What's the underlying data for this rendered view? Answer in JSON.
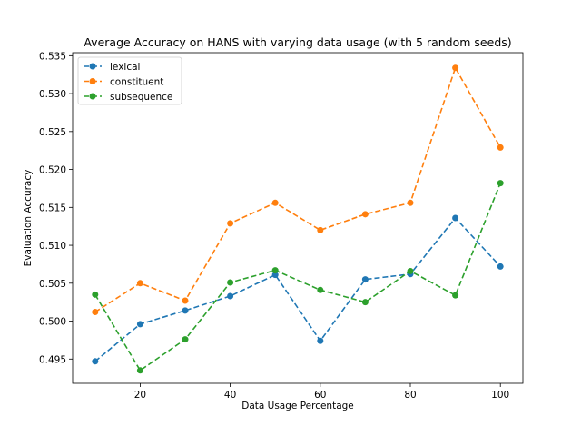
{
  "chart_data": {
    "type": "line",
    "title": "Average Accuracy on HANS with varying data usage (with 5 random seeds)",
    "xlabel": "Data Usage Percentage",
    "ylabel": "Evaluation Accuracy",
    "x": [
      10,
      20,
      30,
      40,
      50,
      60,
      70,
      80,
      90,
      100
    ],
    "xlim": [
      5,
      105
    ],
    "ylim": [
      0.4918,
      0.5354
    ],
    "xticks": [
      20,
      40,
      60,
      80,
      100
    ],
    "xtick_labels": [
      "20",
      "40",
      "60",
      "80",
      "100"
    ],
    "yticks": [
      0.495,
      0.5,
      0.505,
      0.51,
      0.515,
      0.52,
      0.525,
      0.53,
      0.535
    ],
    "ytick_labels": [
      "0.495",
      "0.500",
      "0.505",
      "0.510",
      "0.515",
      "0.520",
      "0.525",
      "0.530",
      "0.535"
    ],
    "grid": false,
    "legend_position": "top-left",
    "line_style": "dashed",
    "marker": "circle",
    "series": [
      {
        "name": "lexical",
        "color": "#1f77b4",
        "values": [
          0.4947,
          0.4996,
          0.5014,
          0.5033,
          0.5061,
          0.4974,
          0.5055,
          0.5062,
          0.5136,
          0.5072
        ]
      },
      {
        "name": "constituent",
        "color": "#ff7f0e",
        "values": [
          0.5012,
          0.505,
          0.5027,
          0.5129,
          0.5156,
          0.512,
          0.5141,
          0.5156,
          0.5334,
          0.5229
        ]
      },
      {
        "name": "subsequence",
        "color": "#2ca02c",
        "values": [
          0.5035,
          0.4935,
          0.4976,
          0.5051,
          0.5067,
          0.5041,
          0.5025,
          0.5066,
          0.5034,
          0.5182
        ]
      }
    ]
  }
}
